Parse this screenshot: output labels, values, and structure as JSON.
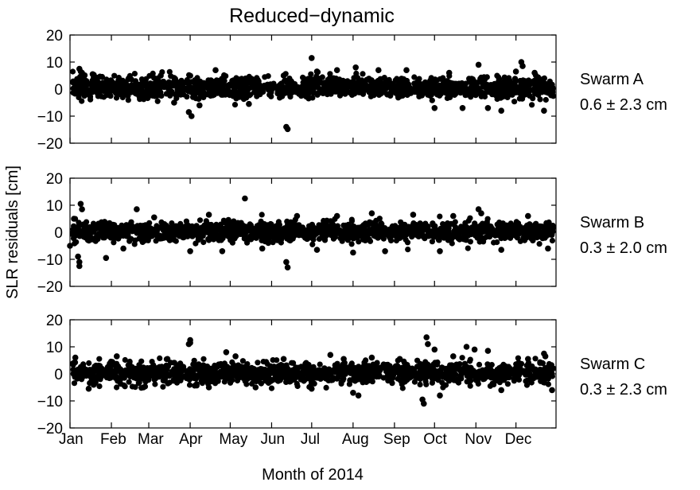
{
  "chart_data": {
    "type": "scatter",
    "title": "Reduced−dynamic",
    "xlabel": "Month of 2014",
    "ylabel": "SLR residuals [cm]",
    "x_unit": "date",
    "xlim": [
      "2014-01-01",
      "2014-12-31"
    ],
    "ylim": [
      -20,
      20
    ],
    "yticks": [
      20,
      10,
      0,
      -10,
      -20
    ],
    "ytick_labels": [
      "20",
      "10",
      "0",
      "−10",
      "−20"
    ],
    "xtick_labels": [
      "Jan",
      "Feb",
      "Mar",
      "Apr",
      "May",
      "Jun",
      "Jul",
      "Aug",
      "Sep",
      "Oct",
      "Nov",
      "Dec"
    ],
    "xtick_dates": [
      "2014-01-01",
      "2014-02-01",
      "2014-03-01",
      "2014-04-01",
      "2014-05-01",
      "2014-06-01",
      "2014-07-01",
      "2014-08-01",
      "2014-09-01",
      "2014-10-01",
      "2014-11-01",
      "2014-12-01"
    ],
    "grid": false,
    "marker_color": "#000000",
    "series": [
      {
        "name": "Swarm A",
        "stat": "0.6 ± 2.3 cm",
        "band_sd": 2.3,
        "points": [
          [
            "2014-01-08",
            7.5
          ],
          [
            "2014-01-10",
            6.0
          ],
          [
            "2014-01-18",
            5.5
          ],
          [
            "2014-01-25",
            4.5
          ],
          [
            "2014-02-14",
            4.0
          ],
          [
            "2014-03-10",
            5.0
          ],
          [
            "2014-03-20",
            -5.0
          ],
          [
            "2014-03-31",
            -8.5
          ],
          [
            "2014-04-02",
            -10.0
          ],
          [
            "2014-04-08",
            -6.0
          ],
          [
            "2014-04-20",
            7.0
          ],
          [
            "2014-05-15",
            -5.5
          ],
          [
            "2014-06-10",
            5.0
          ],
          [
            "2014-06-12",
            -14.0
          ],
          [
            "2014-06-13",
            -14.8
          ],
          [
            "2014-07-01",
            11.5
          ],
          [
            "2014-07-05",
            6.5
          ],
          [
            "2014-07-20",
            7.0
          ],
          [
            "2014-08-03",
            8.0
          ],
          [
            "2014-08-20",
            7.0
          ],
          [
            "2014-09-10",
            7.0
          ],
          [
            "2014-10-01",
            -7.0
          ],
          [
            "2014-10-12",
            6.0
          ],
          [
            "2014-10-22",
            -7.0
          ],
          [
            "2014-11-03",
            9.0
          ],
          [
            "2014-11-10",
            -7.0
          ],
          [
            "2014-11-20",
            -8.0
          ],
          [
            "2014-12-01",
            6.5
          ],
          [
            "2014-12-05",
            10.0
          ],
          [
            "2014-12-06",
            8.5
          ],
          [
            "2014-12-15",
            6.0
          ],
          [
            "2014-12-22",
            -8.0
          ]
        ]
      },
      {
        "name": "Swarm B",
        "stat": "0.3 ± 2.0 cm",
        "band_sd": 2.0,
        "points": [
          [
            "2014-01-01",
            -5.0
          ],
          [
            "2014-01-04",
            5.0
          ],
          [
            "2014-01-07",
            -9.0
          ],
          [
            "2014-01-08",
            -11.0
          ],
          [
            "2014-01-08",
            -12.5
          ],
          [
            "2014-01-09",
            10.5
          ],
          [
            "2014-01-10",
            8.5
          ],
          [
            "2014-01-28",
            -9.5
          ],
          [
            "2014-02-10",
            -6.0
          ],
          [
            "2014-02-20",
            8.5
          ],
          [
            "2014-03-05",
            5.5
          ],
          [
            "2014-04-01",
            -7.0
          ],
          [
            "2014-04-15",
            6.5
          ],
          [
            "2014-04-25",
            -7.0
          ],
          [
            "2014-05-12",
            12.5
          ],
          [
            "2014-05-25",
            -6.0
          ],
          [
            "2014-06-12",
            -11.0
          ],
          [
            "2014-06-13",
            -13.0
          ],
          [
            "2014-06-20",
            6.0
          ],
          [
            "2014-07-05",
            -6.5
          ],
          [
            "2014-07-20",
            6.0
          ],
          [
            "2014-08-01",
            -7.5
          ],
          [
            "2014-08-15",
            7.0
          ],
          [
            "2014-08-25",
            -7.0
          ],
          [
            "2014-09-15",
            6.5
          ],
          [
            "2014-10-05",
            -7.0
          ],
          [
            "2014-10-15",
            6.0
          ],
          [
            "2014-11-03",
            8.5
          ],
          [
            "2014-11-05",
            7.0
          ],
          [
            "2014-11-20",
            -6.5
          ],
          [
            "2014-12-10",
            6.0
          ],
          [
            "2014-12-25",
            -6.0
          ]
        ]
      },
      {
        "name": "Swarm C",
        "stat": "0.3 ± 2.3 cm",
        "band_sd": 2.3,
        "points": [
          [
            "2014-01-05",
            6.0
          ],
          [
            "2014-01-15",
            -5.5
          ],
          [
            "2014-02-05",
            6.5
          ],
          [
            "2014-02-25",
            -5.0
          ],
          [
            "2014-03-15",
            5.5
          ],
          [
            "2014-03-31",
            11.0
          ],
          [
            "2014-04-01",
            12.5
          ],
          [
            "2014-04-01",
            11.5
          ],
          [
            "2014-04-15",
            -5.0
          ],
          [
            "2014-04-28",
            8.0
          ],
          [
            "2014-05-05",
            6.5
          ],
          [
            "2014-05-20",
            -5.0
          ],
          [
            "2014-06-10",
            5.5
          ],
          [
            "2014-07-01",
            -5.5
          ],
          [
            "2014-07-15",
            7.0
          ],
          [
            "2014-07-25",
            5.5
          ],
          [
            "2014-08-01",
            -7.0
          ],
          [
            "2014-08-05",
            -8.0
          ],
          [
            "2014-08-15",
            6.0
          ],
          [
            "2014-09-05",
            5.5
          ],
          [
            "2014-09-22",
            -9.5
          ],
          [
            "2014-09-23",
            -11.0
          ],
          [
            "2014-09-25",
            13.5
          ],
          [
            "2014-09-26",
            11.0
          ],
          [
            "2014-10-01",
            9.0
          ],
          [
            "2014-10-05",
            -8.0
          ],
          [
            "2014-10-15",
            6.5
          ],
          [
            "2014-10-25",
            10.0
          ],
          [
            "2014-10-31",
            9.0
          ],
          [
            "2014-11-10",
            8.5
          ],
          [
            "2014-11-20",
            -6.0
          ],
          [
            "2014-12-10",
            5.5
          ],
          [
            "2014-12-22",
            7.5
          ],
          [
            "2014-12-23",
            6.5
          ],
          [
            "2014-12-28",
            -6.0
          ]
        ]
      }
    ]
  }
}
